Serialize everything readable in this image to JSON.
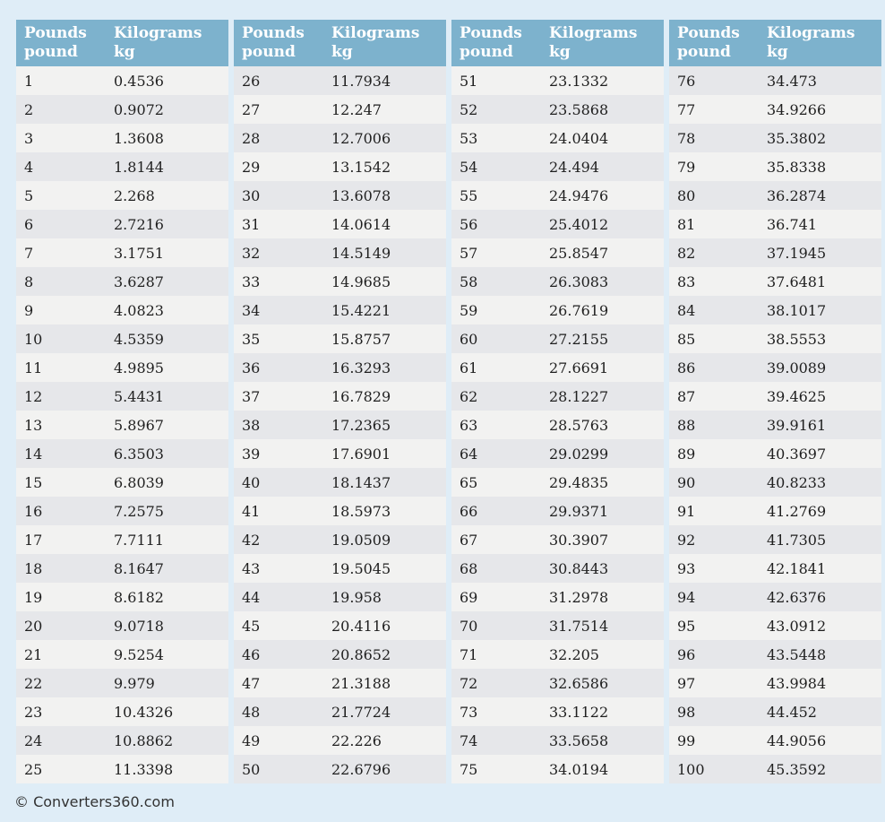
{
  "page": {
    "background_color": "#dfedf7",
    "copyright": "© Converters360.com"
  },
  "table_header": {
    "pounds_title": "Pounds",
    "pounds_subtitle": "pound",
    "kilograms_title": "Kilograms",
    "kilograms_subtitle": "kg"
  },
  "colors": {
    "header_background": "#7db2cd",
    "header_text": "#ffffff",
    "row_light": "#f2f2f1",
    "row_dark": "#e6e7ea",
    "value_text": "#1f1f1f",
    "copyright_text": "#333333"
  },
  "chart_data": {
    "type": "table",
    "columns": [
      "Pounds pound",
      "Kilograms kg"
    ],
    "groups": [
      {
        "rows": [
          [
            1,
            "0.4536"
          ],
          [
            2,
            "0.9072"
          ],
          [
            3,
            "1.3608"
          ],
          [
            4,
            "1.8144"
          ],
          [
            5,
            "2.268"
          ],
          [
            6,
            "2.7216"
          ],
          [
            7,
            "3.1751"
          ],
          [
            8,
            "3.6287"
          ],
          [
            9,
            "4.0823"
          ],
          [
            10,
            "4.5359"
          ],
          [
            11,
            "4.9895"
          ],
          [
            12,
            "5.4431"
          ],
          [
            13,
            "5.8967"
          ],
          [
            14,
            "6.3503"
          ],
          [
            15,
            "6.8039"
          ],
          [
            16,
            "7.2575"
          ],
          [
            17,
            "7.7111"
          ],
          [
            18,
            "8.1647"
          ],
          [
            19,
            "8.6182"
          ],
          [
            20,
            "9.0718"
          ],
          [
            21,
            "9.5254"
          ],
          [
            22,
            "9.979"
          ],
          [
            23,
            "10.4326"
          ],
          [
            24,
            "10.8862"
          ],
          [
            25,
            "11.3398"
          ]
        ]
      },
      {
        "rows": [
          [
            26,
            "11.7934"
          ],
          [
            27,
            "12.247"
          ],
          [
            28,
            "12.7006"
          ],
          [
            29,
            "13.1542"
          ],
          [
            30,
            "13.6078"
          ],
          [
            31,
            "14.0614"
          ],
          [
            32,
            "14.5149"
          ],
          [
            33,
            "14.9685"
          ],
          [
            34,
            "15.4221"
          ],
          [
            35,
            "15.8757"
          ],
          [
            36,
            "16.3293"
          ],
          [
            37,
            "16.7829"
          ],
          [
            38,
            "17.2365"
          ],
          [
            39,
            "17.6901"
          ],
          [
            40,
            "18.1437"
          ],
          [
            41,
            "18.5973"
          ],
          [
            42,
            "19.0509"
          ],
          [
            43,
            "19.5045"
          ],
          [
            44,
            "19.958"
          ],
          [
            45,
            "20.4116"
          ],
          [
            46,
            "20.8652"
          ],
          [
            47,
            "21.3188"
          ],
          [
            48,
            "21.7724"
          ],
          [
            49,
            "22.226"
          ],
          [
            50,
            "22.6796"
          ]
        ]
      },
      {
        "rows": [
          [
            51,
            "23.1332"
          ],
          [
            52,
            "23.5868"
          ],
          [
            53,
            "24.0404"
          ],
          [
            54,
            "24.494"
          ],
          [
            55,
            "24.9476"
          ],
          [
            56,
            "25.4012"
          ],
          [
            57,
            "25.8547"
          ],
          [
            58,
            "26.3083"
          ],
          [
            59,
            "26.7619"
          ],
          [
            60,
            "27.2155"
          ],
          [
            61,
            "27.6691"
          ],
          [
            62,
            "28.1227"
          ],
          [
            63,
            "28.5763"
          ],
          [
            64,
            "29.0299"
          ],
          [
            65,
            "29.4835"
          ],
          [
            66,
            "29.9371"
          ],
          [
            67,
            "30.3907"
          ],
          [
            68,
            "30.8443"
          ],
          [
            69,
            "31.2978"
          ],
          [
            70,
            "31.7514"
          ],
          [
            71,
            "32.205"
          ],
          [
            72,
            "32.6586"
          ],
          [
            73,
            "33.1122"
          ],
          [
            74,
            "33.5658"
          ],
          [
            75,
            "34.0194"
          ]
        ]
      },
      {
        "rows": [
          [
            76,
            "34.473"
          ],
          [
            77,
            "34.9266"
          ],
          [
            78,
            "35.3802"
          ],
          [
            79,
            "35.8338"
          ],
          [
            80,
            "36.2874"
          ],
          [
            81,
            "36.741"
          ],
          [
            82,
            "37.1945"
          ],
          [
            83,
            "37.6481"
          ],
          [
            84,
            "38.1017"
          ],
          [
            85,
            "38.5553"
          ],
          [
            86,
            "39.0089"
          ],
          [
            87,
            "39.4625"
          ],
          [
            88,
            "39.9161"
          ],
          [
            89,
            "40.3697"
          ],
          [
            90,
            "40.8233"
          ],
          [
            91,
            "41.2769"
          ],
          [
            92,
            "41.7305"
          ],
          [
            93,
            "42.1841"
          ],
          [
            94,
            "42.6376"
          ],
          [
            95,
            "43.0912"
          ],
          [
            96,
            "43.5448"
          ],
          [
            97,
            "43.9984"
          ],
          [
            98,
            "44.452"
          ],
          [
            99,
            "44.9056"
          ],
          [
            100,
            "45.3592"
          ]
        ]
      }
    ]
  }
}
